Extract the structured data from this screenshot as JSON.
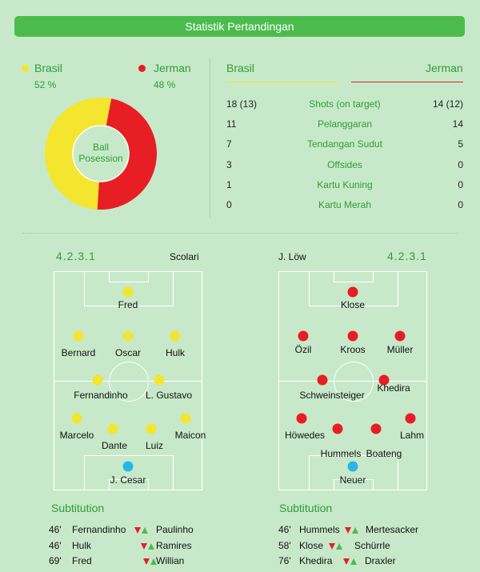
{
  "header": {
    "title": "Statistik Pertandingan"
  },
  "teams": {
    "home": {
      "name": "Brasil",
      "possession_label": "52 %",
      "possession": 52,
      "color": "#f4e52e"
    },
    "away": {
      "name": "Jerman",
      "possession_label": "48 %",
      "possession": 48,
      "color": "#e81e25"
    }
  },
  "donut": {
    "label_line1": "Ball",
    "label_line2": "Posession"
  },
  "stats": {
    "home_header": "Brasil",
    "away_header": "Jerman",
    "rows": [
      {
        "home": "18 (13)",
        "label": "Shots (on target)",
        "away": "14 (12)"
      },
      {
        "home": "11",
        "label": "Pelanggaran",
        "away": "14"
      },
      {
        "home": "7",
        "label": "Tendangan Sudut",
        "away": "5"
      },
      {
        "home": "3",
        "label": "Offsides",
        "away": "0"
      },
      {
        "home": "1",
        "label": "Kartu Kuning",
        "away": "0"
      },
      {
        "home": "0",
        "label": "Kartu Merah",
        "away": "0"
      }
    ]
  },
  "lineups": {
    "home": {
      "formation": "4.2.3.1",
      "coach": "Scolari",
      "players": [
        {
          "name": "Fred",
          "role": "outfield"
        },
        {
          "name": "Bernard",
          "role": "outfield"
        },
        {
          "name": "Oscar",
          "role": "outfield"
        },
        {
          "name": "Hulk",
          "role": "outfield"
        },
        {
          "name": "Fernandinho",
          "role": "outfield"
        },
        {
          "name": "L. Gustavo",
          "role": "outfield"
        },
        {
          "name": "Marcelo",
          "role": "outfield"
        },
        {
          "name": "Dante",
          "role": "outfield"
        },
        {
          "name": "Luiz",
          "role": "outfield"
        },
        {
          "name": "Maicon",
          "role": "outfield"
        },
        {
          "name": "J. Cesar",
          "role": "goalkeeper"
        }
      ]
    },
    "away": {
      "formation": "4.2.3.1",
      "coach": "J. Löw",
      "players": [
        {
          "name": "Klose",
          "role": "outfield"
        },
        {
          "name": "Özil",
          "role": "outfield"
        },
        {
          "name": "Kroos",
          "role": "outfield"
        },
        {
          "name": "Müller",
          "role": "outfield"
        },
        {
          "name": "Schweinsteiger",
          "role": "outfield"
        },
        {
          "name": "Khedira",
          "role": "outfield"
        },
        {
          "name": "Höwedes",
          "role": "outfield"
        },
        {
          "name": "Hummels",
          "role": "outfield"
        },
        {
          "name": "Boateng",
          "role": "outfield"
        },
        {
          "name": "Lahm",
          "role": "outfield"
        },
        {
          "name": "Neuer",
          "role": "goalkeeper"
        }
      ]
    }
  },
  "substitutions": {
    "title": "Subtitution",
    "home": [
      {
        "minute": "46'",
        "out": "Fernandinho",
        "in": "Paulinho"
      },
      {
        "minute": "46'",
        "out": "Hulk",
        "in": "Ramires"
      },
      {
        "minute": "69'",
        "out": "Fred",
        "in": "Willian"
      }
    ],
    "away": [
      {
        "minute": "46'",
        "out": "Hummels",
        "in": "Mertesacker"
      },
      {
        "minute": "58'",
        "out": "Klose",
        "in": "Schürrle"
      },
      {
        "minute": "76'",
        "out": "Khedira",
        "in": "Draxler"
      }
    ]
  },
  "colors": {
    "goalkeeper": "#29b6e8",
    "arrow_out": "#e81e25",
    "arrow_in": "#4cbb4e",
    "accent": "#4cbb4e"
  }
}
